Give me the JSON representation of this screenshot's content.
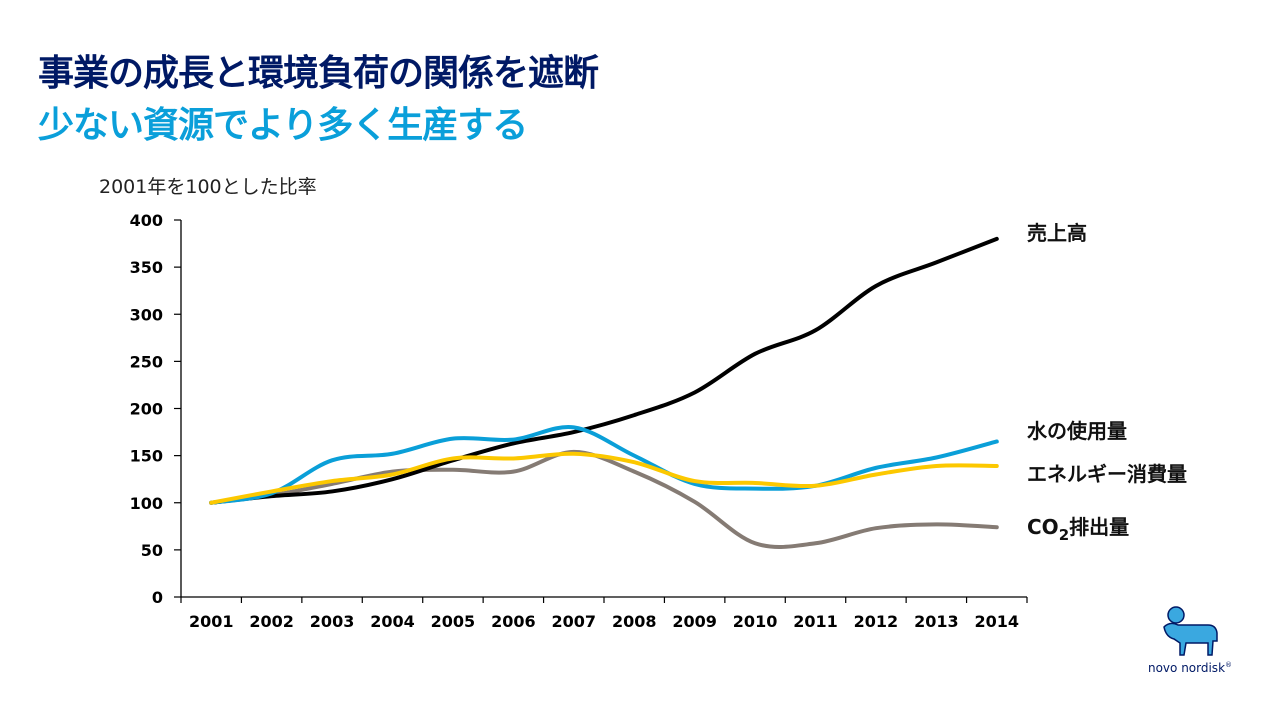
{
  "header": {
    "title": "事業の成長と環境負荷の関係を遮断",
    "subtitle": "少ない資源でより多く生産する"
  },
  "logo": {
    "text": "novo nordisk",
    "mark": "®",
    "icon": "apis-bull-icon"
  },
  "chart_data": {
    "type": "line",
    "title": "",
    "ylabel": "2001年を100とした比率",
    "xlabel": "",
    "ylim": [
      0,
      400
    ],
    "yticks": [
      0,
      50,
      100,
      150,
      200,
      250,
      300,
      350,
      400
    ],
    "grid": false,
    "legend": "right-end inline labels",
    "categories": [
      "2001",
      "2002",
      "2003",
      "2004",
      "2005",
      "2006",
      "2007",
      "2008",
      "2009",
      "2010",
      "2011",
      "2012",
      "2013",
      "2014"
    ],
    "series": [
      {
        "name": "売上高",
        "color": "#000000",
        "values": [
          100,
          107,
          112,
          125,
          145,
          163,
          175,
          193,
          217,
          258,
          283,
          330,
          355,
          380
        ]
      },
      {
        "name": "水の使用量",
        "color": "#0a9fd8",
        "values": [
          100,
          110,
          145,
          152,
          168,
          167,
          180,
          150,
          120,
          115,
          118,
          137,
          148,
          165
        ]
      },
      {
        "name": "エネルギー消費量",
        "color": "#fcc800",
        "values": [
          100,
          112,
          123,
          130,
          147,
          147,
          152,
          143,
          123,
          121,
          118,
          130,
          139,
          139
        ]
      },
      {
        "name": "CO2排出量",
        "label_main": "CO",
        "label_sub": "2",
        "label_rest": "排出量",
        "color": "#857b74",
        "values": [
          100,
          108,
          120,
          133,
          135,
          133,
          154,
          133,
          101,
          57,
          57,
          73,
          77,
          74
        ]
      }
    ]
  }
}
